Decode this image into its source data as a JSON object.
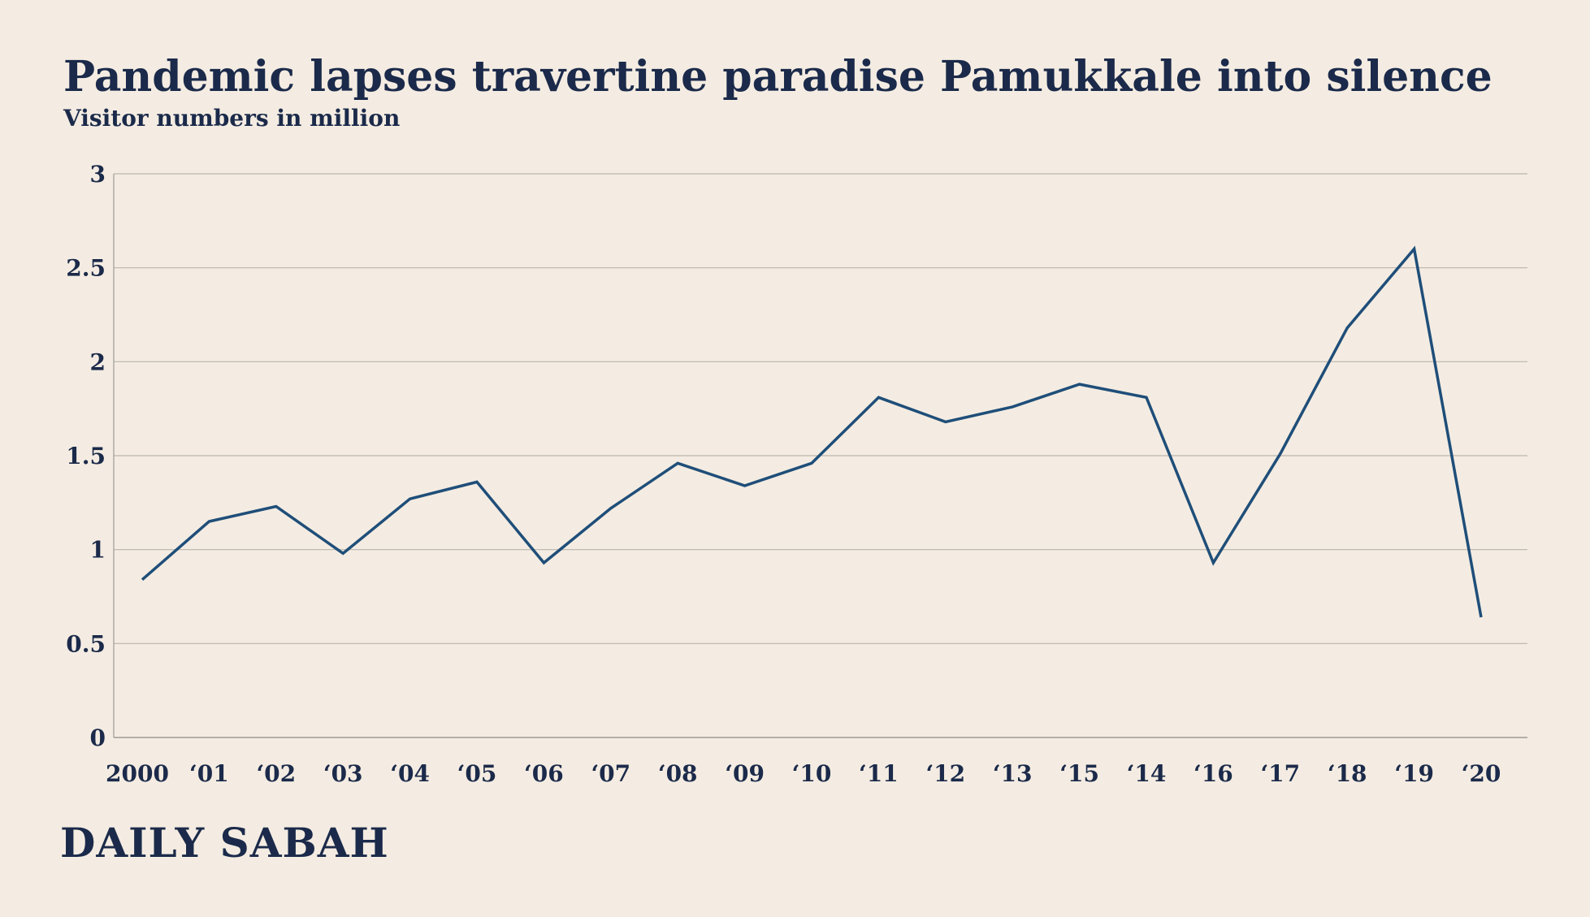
{
  "colors": {
    "background": "#f4ece2",
    "text": "#1b2a4a",
    "line": "#1f4e79",
    "grid": "#b9b5ae",
    "axis": "#9c9a95"
  },
  "chart_data": {
    "type": "line",
    "title": "Pandemic lapses travertine paradise Pamukkale into silence",
    "subtitle": "Visitor numbers in million",
    "xlabel": "",
    "ylabel": "",
    "categories": [
      "2000",
      "‘01",
      "‘02",
      "‘03",
      "‘04",
      "‘05",
      "‘06",
      "‘07",
      "‘08",
      "‘09",
      "‘10",
      "‘11",
      "‘12",
      "‘13",
      "‘15",
      "‘14",
      "‘16",
      "‘17",
      "‘18",
      "‘19",
      "‘20"
    ],
    "values": [
      0.84,
      1.15,
      1.23,
      0.98,
      1.27,
      1.36,
      0.93,
      1.22,
      1.46,
      1.34,
      1.46,
      1.81,
      1.68,
      1.76,
      1.88,
      1.81,
      0.93,
      1.51,
      2.18,
      2.6,
      0.64
    ],
    "ylim": [
      0,
      3
    ],
    "yticks": [
      0,
      0.5,
      1,
      1.5,
      2,
      2.5,
      3
    ],
    "ytick_labels": [
      "0",
      "0.5",
      "1",
      "1.5",
      "2",
      "2.5",
      "3"
    ],
    "grid": true,
    "legend": "none"
  },
  "brand": {
    "logo_text": "DAILY SABAH"
  }
}
